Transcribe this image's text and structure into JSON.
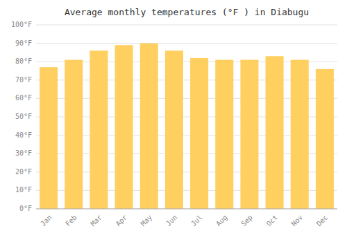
{
  "chart_data": {
    "type": "bar",
    "title": "Average monthly temperatures (°F ) in Diabugu",
    "categories": [
      "Jan",
      "Feb",
      "Mar",
      "Apr",
      "May",
      "Jun",
      "Jul",
      "Aug",
      "Sep",
      "Oct",
      "Nov",
      "Dec"
    ],
    "values": [
      77,
      81,
      86,
      89,
      90,
      86,
      82,
      81,
      81,
      83,
      81,
      76
    ],
    "color": "#FFD060",
    "ylim": [
      0,
      100
    ],
    "yticks": [
      {
        "value": 0,
        "label": "0°F"
      },
      {
        "value": 10,
        "label": "10°F"
      },
      {
        "value": 20,
        "label": "20°F"
      },
      {
        "value": 30,
        "label": "30°F"
      },
      {
        "value": 40,
        "label": "40°F"
      },
      {
        "value": 50,
        "label": "50°F"
      },
      {
        "value": 60,
        "label": "60°F"
      },
      {
        "value": 70,
        "label": "70°F"
      },
      {
        "value": 80,
        "label": "80°F"
      },
      {
        "value": 90,
        "label": "90°F"
      },
      {
        "value": 100,
        "label": "100°F"
      }
    ],
    "grid": true
  }
}
